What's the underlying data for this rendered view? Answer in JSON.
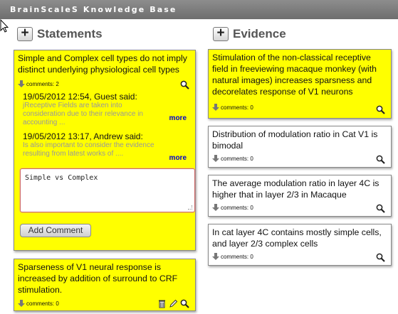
{
  "app": {
    "title": "BrainScaleS Knowledge Base"
  },
  "statements": {
    "heading": "Statements",
    "add_icon": "+",
    "cards": [
      {
        "text": "Simple and Complex cell types do not imply distinct underlying physiological cell types",
        "comments_label": "comments: 2",
        "comments": [
          {
            "header": "19/05/2012 12:54, Guest said:",
            "body": "jReceptive Fields are taken into consideration due to their relevance in accounting ...",
            "more": "more"
          },
          {
            "header": "19/05/2012 13:17, Andrew said:",
            "body": "Is also important to consider the evidence resulting from latest works of ....",
            "more": "more"
          }
        ],
        "comment_input": "Simple vs Complex",
        "add_comment_label": "Add Comment"
      },
      {
        "text": "Sparseness of V1 neural response is increased by addition of surround to CRF stimulation.",
        "comments_label": "comments: 0"
      }
    ]
  },
  "evidence": {
    "heading": "Evidence",
    "add_icon": "+",
    "cards": [
      {
        "text": "Stimulation of the non-classical receptive field in freeviewing macaque monkey (with natural images) increases sparsness and decorelates response of V1 neurons",
        "comments_label": "comments: 0"
      },
      {
        "text": "Distribution of modulation ratio in Cat V1 is bimodal",
        "comments_label": "comments: 0"
      },
      {
        "text": "The average modulation ratio in layer 4C is higher that in layer 2/3 in Macaque",
        "comments_label": "comments: 0"
      },
      {
        "text": "In cat layer 4C contains mostly simple cells, and layer 2/3 complex cells",
        "comments_label": "comments: 0"
      }
    ]
  },
  "icons": {
    "expand": "down-arrow-icon",
    "search": "magnifier-icon",
    "delete": "trash-icon",
    "edit": "pencil-icon",
    "cursor": "mouse-pointer-icon"
  },
  "colors": {
    "titlebar": "#7a7a7a",
    "statement_card": "#ffff00",
    "evidence_card": "#ffffff",
    "link": "#0000cc"
  }
}
